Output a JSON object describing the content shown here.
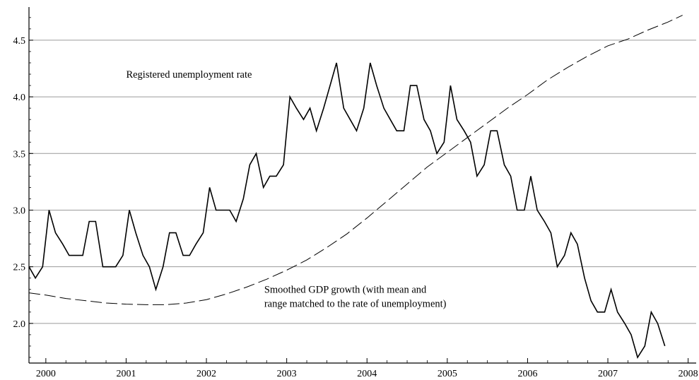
{
  "chart_data": {
    "type": "line",
    "title": "",
    "xlabel": "",
    "ylabel": "",
    "xlim": [
      1999.79,
      2008.1
    ],
    "ylim": [
      1.65,
      4.78
    ],
    "grid": true,
    "x_ticks": [
      2000,
      2001,
      2002,
      2003,
      2004,
      2005,
      2006,
      2007,
      2008
    ],
    "x_tick_labels": [
      "2000",
      "2001",
      "2002",
      "2003",
      "2004",
      "2005",
      "2006",
      "2007",
      "2008"
    ],
    "y_ticks": [
      2.0,
      2.5,
      3.0,
      3.5,
      4.0,
      4.5
    ],
    "y_tick_labels": [
      "2.0",
      "2.5",
      "3.0",
      "3.5",
      "4.0",
      "4.5"
    ],
    "annotations": [
      {
        "lines": [
          "Registered unemployment rate"
        ],
        "x": 2001.0,
        "y": 4.17
      },
      {
        "lines": [
          "Smoothed GDP growth (with mean and",
          "range matched to the rate of unemployment)"
        ],
        "x": 2002.72,
        "y": 2.27
      }
    ],
    "series": [
      {
        "style": "solid",
        "x": [
          1999.79,
          1999.87,
          1999.96,
          2000.04,
          2000.12,
          2000.21,
          2000.29,
          2000.37,
          2000.46,
          2000.54,
          2000.62,
          2000.71,
          2000.79,
          2000.87,
          2000.96,
          2001.04,
          2001.12,
          2001.21,
          2001.29,
          2001.37,
          2001.46,
          2001.54,
          2001.62,
          2001.71,
          2001.79,
          2001.87,
          2001.96,
          2002.04,
          2002.12,
          2002.21,
          2002.29,
          2002.37,
          2002.46,
          2002.54,
          2002.62,
          2002.71,
          2002.79,
          2002.87,
          2002.96,
          2003.04,
          2003.12,
          2003.21,
          2003.29,
          2003.37,
          2003.46,
          2003.54,
          2003.62,
          2003.71,
          2003.79,
          2003.87,
          2003.96,
          2004.04,
          2004.12,
          2004.21,
          2004.29,
          2004.37,
          2004.46,
          2004.54,
          2004.62,
          2004.71,
          2004.79,
          2004.87,
          2004.96,
          2005.04,
          2005.12,
          2005.21,
          2005.29,
          2005.37,
          2005.46,
          2005.54,
          2005.62,
          2005.71,
          2005.79,
          2005.87,
          2005.96,
          2006.04,
          2006.12,
          2006.21,
          2006.29,
          2006.37,
          2006.46,
          2006.54,
          2006.62,
          2006.71,
          2006.79,
          2006.87,
          2006.96,
          2007.04,
          2007.12,
          2007.21,
          2007.29,
          2007.37,
          2007.46,
          2007.54,
          2007.62,
          2007.71
        ],
        "y": [
          2.5,
          2.4,
          2.5,
          3.0,
          2.8,
          2.7,
          2.6,
          2.6,
          2.6,
          2.9,
          2.9,
          2.5,
          2.5,
          2.5,
          2.6,
          3.0,
          2.8,
          2.6,
          2.5,
          2.3,
          2.5,
          2.8,
          2.8,
          2.6,
          2.6,
          2.7,
          2.8,
          3.2,
          3.0,
          3.0,
          3.0,
          2.9,
          3.1,
          3.4,
          3.5,
          3.2,
          3.3,
          3.3,
          3.4,
          4.0,
          3.9,
          3.8,
          3.9,
          3.7,
          3.9,
          4.1,
          4.3,
          3.9,
          3.8,
          3.7,
          3.9,
          4.3,
          4.1,
          3.9,
          3.8,
          3.7,
          3.7,
          4.1,
          4.1,
          3.8,
          3.7,
          3.5,
          3.6,
          4.1,
          3.8,
          3.7,
          3.6,
          3.3,
          3.4,
          3.7,
          3.7,
          3.4,
          3.3,
          3.0,
          3.0,
          3.3,
          3.0,
          2.9,
          2.8,
          2.5,
          2.6,
          2.8,
          2.7,
          2.4,
          2.2,
          2.1,
          2.1,
          2.3,
          2.1,
          2.0,
          1.9,
          1.7,
          1.8,
          2.1,
          2.0,
          1.8
        ]
      },
      {
        "style": "dashed",
        "x": [
          1999.79,
          2000.0,
          2000.25,
          2000.5,
          2000.75,
          2001.0,
          2001.25,
          2001.5,
          2001.75,
          2002.0,
          2002.25,
          2002.5,
          2002.75,
          2003.0,
          2003.25,
          2003.5,
          2003.75,
          2004.0,
          2004.25,
          2004.5,
          2004.75,
          2005.0,
          2005.25,
          2005.5,
          2005.75,
          2006.0,
          2006.25,
          2006.5,
          2006.75,
          2007.0,
          2007.25,
          2007.5,
          2007.75,
          2007.93
        ],
        "y": [
          2.27,
          2.25,
          2.22,
          2.2,
          2.18,
          2.17,
          2.165,
          2.165,
          2.18,
          2.21,
          2.26,
          2.32,
          2.39,
          2.47,
          2.56,
          2.67,
          2.79,
          2.93,
          3.08,
          3.23,
          3.38,
          3.51,
          3.64,
          3.77,
          3.9,
          4.02,
          4.15,
          4.26,
          4.36,
          4.45,
          4.51,
          4.59,
          4.66,
          4.72
        ]
      }
    ]
  }
}
